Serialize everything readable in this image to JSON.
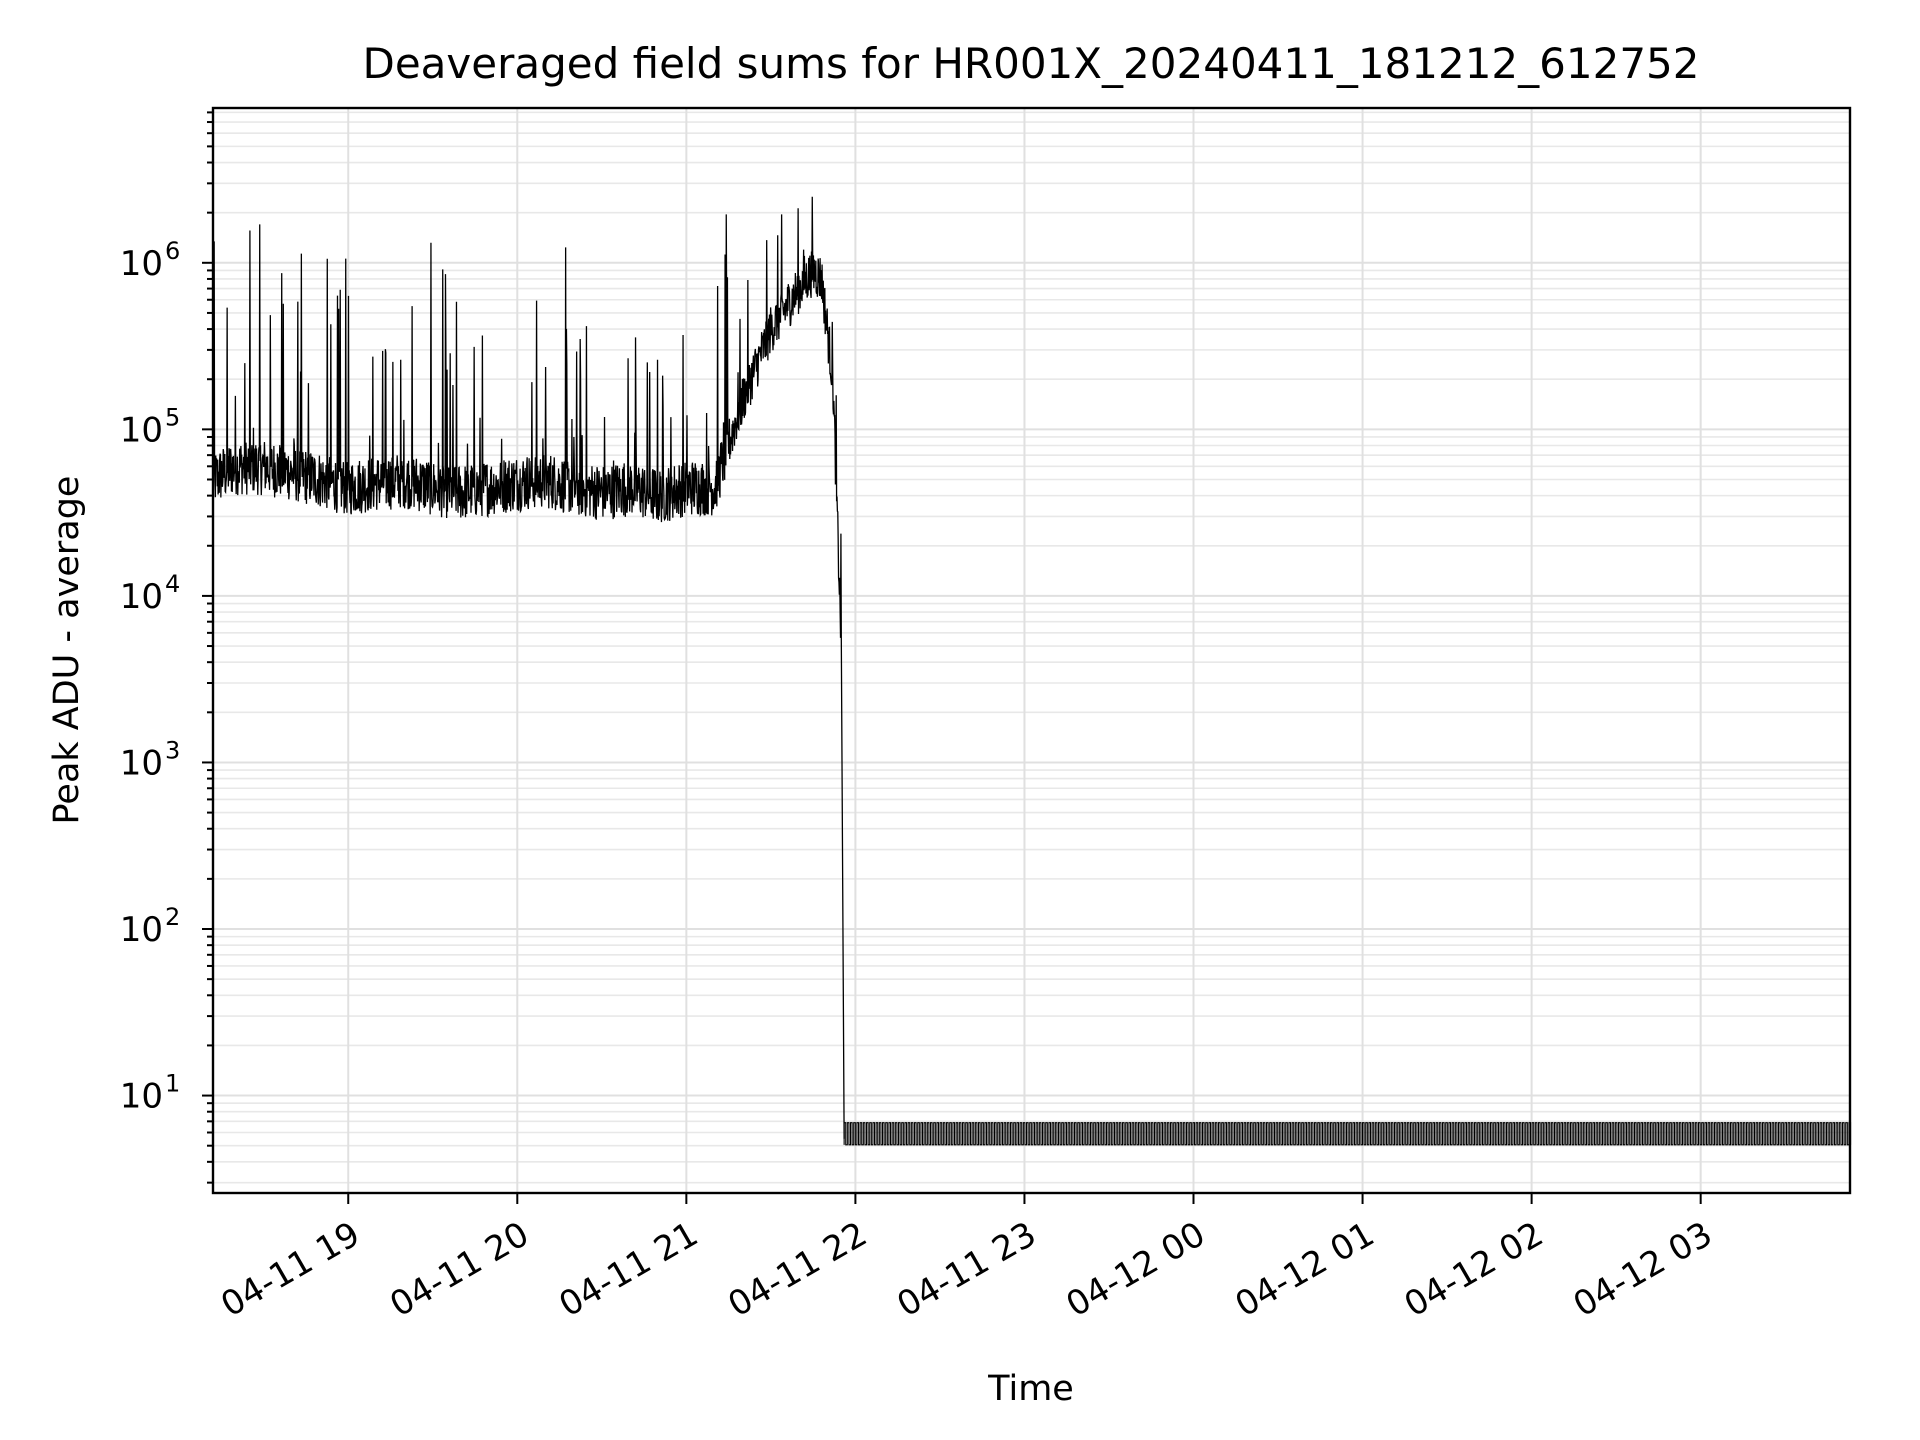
{
  "chart_data": {
    "type": "line",
    "title": "Deaveraged field sums for HR001X_20240411_181212_612752",
    "xlabel": "Time",
    "ylabel": "Peak ADU - average",
    "yscale": "log",
    "ylim": [
      2.6,
      8500000
    ],
    "xlim": [
      "2024-04-11 18:12",
      "2024-04-12 03:53"
    ],
    "grid": true,
    "x_ticks": [
      "04-11 19",
      "04-11 20",
      "04-11 21",
      "04-11 22",
      "04-11 23",
      "04-12 00",
      "04-12 01",
      "04-12 02",
      "04-12 03"
    ],
    "y_ticks": [
      {
        "base": "10",
        "exp": "1",
        "value": 10
      },
      {
        "base": "10",
        "exp": "2",
        "value": 100
      },
      {
        "base": "10",
        "exp": "3",
        "value": 1000
      },
      {
        "base": "10",
        "exp": "4",
        "value": 10000
      },
      {
        "base": "10",
        "exp": "5",
        "value": 100000
      },
      {
        "base": "10",
        "exp": "6",
        "value": 1000000
      }
    ],
    "line_color": "#000000",
    "series": [
      {
        "x": [
          "2024-04-11 18:12",
          "2024-04-11 18:20",
          "2024-04-11 18:30",
          "2024-04-11 18:40",
          "2024-04-11 18:50",
          "2024-04-11 19:00",
          "2024-04-11 19:10",
          "2024-04-11 19:20",
          "2024-04-11 19:30",
          "2024-04-11 19:40",
          "2024-04-11 19:50",
          "2024-04-11 20:00",
          "2024-04-11 20:10",
          "2024-04-11 20:20",
          "2024-04-11 20:30",
          "2024-04-11 20:40",
          "2024-04-11 20:50",
          "2024-04-11 21:00",
          "2024-04-11 21:10",
          "2024-04-11 21:20",
          "2024-04-11 21:30",
          "2024-04-11 21:40",
          "2024-04-11 21:45",
          "2024-04-11 21:48",
          "2024-04-11 21:52",
          "2024-04-11 21:55",
          "2024-04-11 21:56",
          "2024-04-12 03:53"
        ],
        "y": [
          50000,
          60000,
          60000,
          55000,
          50000,
          45000,
          48000,
          50000,
          45000,
          42000,
          45000,
          48000,
          50000,
          45000,
          42000,
          45000,
          40000,
          45000,
          45000,
          150000,
          400000,
          700000,
          900000,
          800000,
          200000,
          5000,
          5.5,
          5.5
        ]
      }
    ]
  }
}
